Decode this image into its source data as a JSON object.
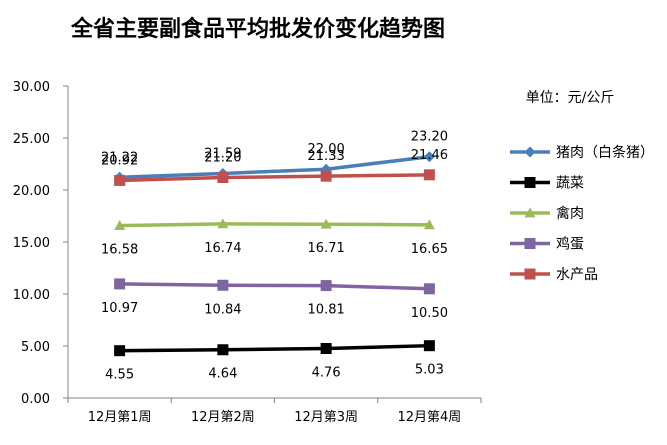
{
  "chart_data": {
    "type": "line",
    "title": "全省主要副食品平均批发价变化趋势图",
    "unit_label": "单位：元/公斤",
    "categories": [
      "12月第1周",
      "12月第2周",
      "12月第3周",
      "12月第4周"
    ],
    "ylim": [
      0,
      30
    ],
    "ytick_labels": [
      "0.00",
      "5.00",
      "10.00",
      "15.00",
      "20.00",
      "25.00",
      "30.00"
    ],
    "grid": false,
    "legend_position": "right",
    "series": [
      {
        "name": "猪肉（白条猪）",
        "values": [
          21.22,
          21.59,
          22.0,
          23.2
        ],
        "labels": [
          "21.22",
          "21.59",
          "22.00",
          "23.20"
        ],
        "color": "#4A7EBB",
        "marker": "diamond",
        "label_pos": "above"
      },
      {
        "name": "蔬菜",
        "values": [
          4.55,
          4.64,
          4.76,
          5.03
        ],
        "labels": [
          "4.55",
          "4.64",
          "4.76",
          "5.03"
        ],
        "color": "#000000",
        "marker": "square",
        "label_pos": "below"
      },
      {
        "name": "禽肉",
        "values": [
          16.58,
          16.74,
          16.71,
          16.65
        ],
        "labels": [
          "16.58",
          "16.74",
          "16.71",
          "16.65"
        ],
        "color": "#9BBB59",
        "marker": "triangle",
        "label_pos": "below"
      },
      {
        "name": "鸡蛋",
        "values": [
          10.97,
          10.84,
          10.81,
          10.5
        ],
        "labels": [
          "10.97",
          "10.84",
          "10.81",
          "10.50"
        ],
        "color": "#8064A2",
        "marker": "square",
        "label_pos": "below"
      },
      {
        "name": "水产品",
        "values": [
          20.92,
          21.2,
          21.33,
          21.46
        ],
        "labels": [
          "20.92",
          "21.20",
          "21.33",
          "21.46"
        ],
        "color": "#C0504D",
        "marker": "square",
        "label_pos": "above"
      }
    ]
  }
}
